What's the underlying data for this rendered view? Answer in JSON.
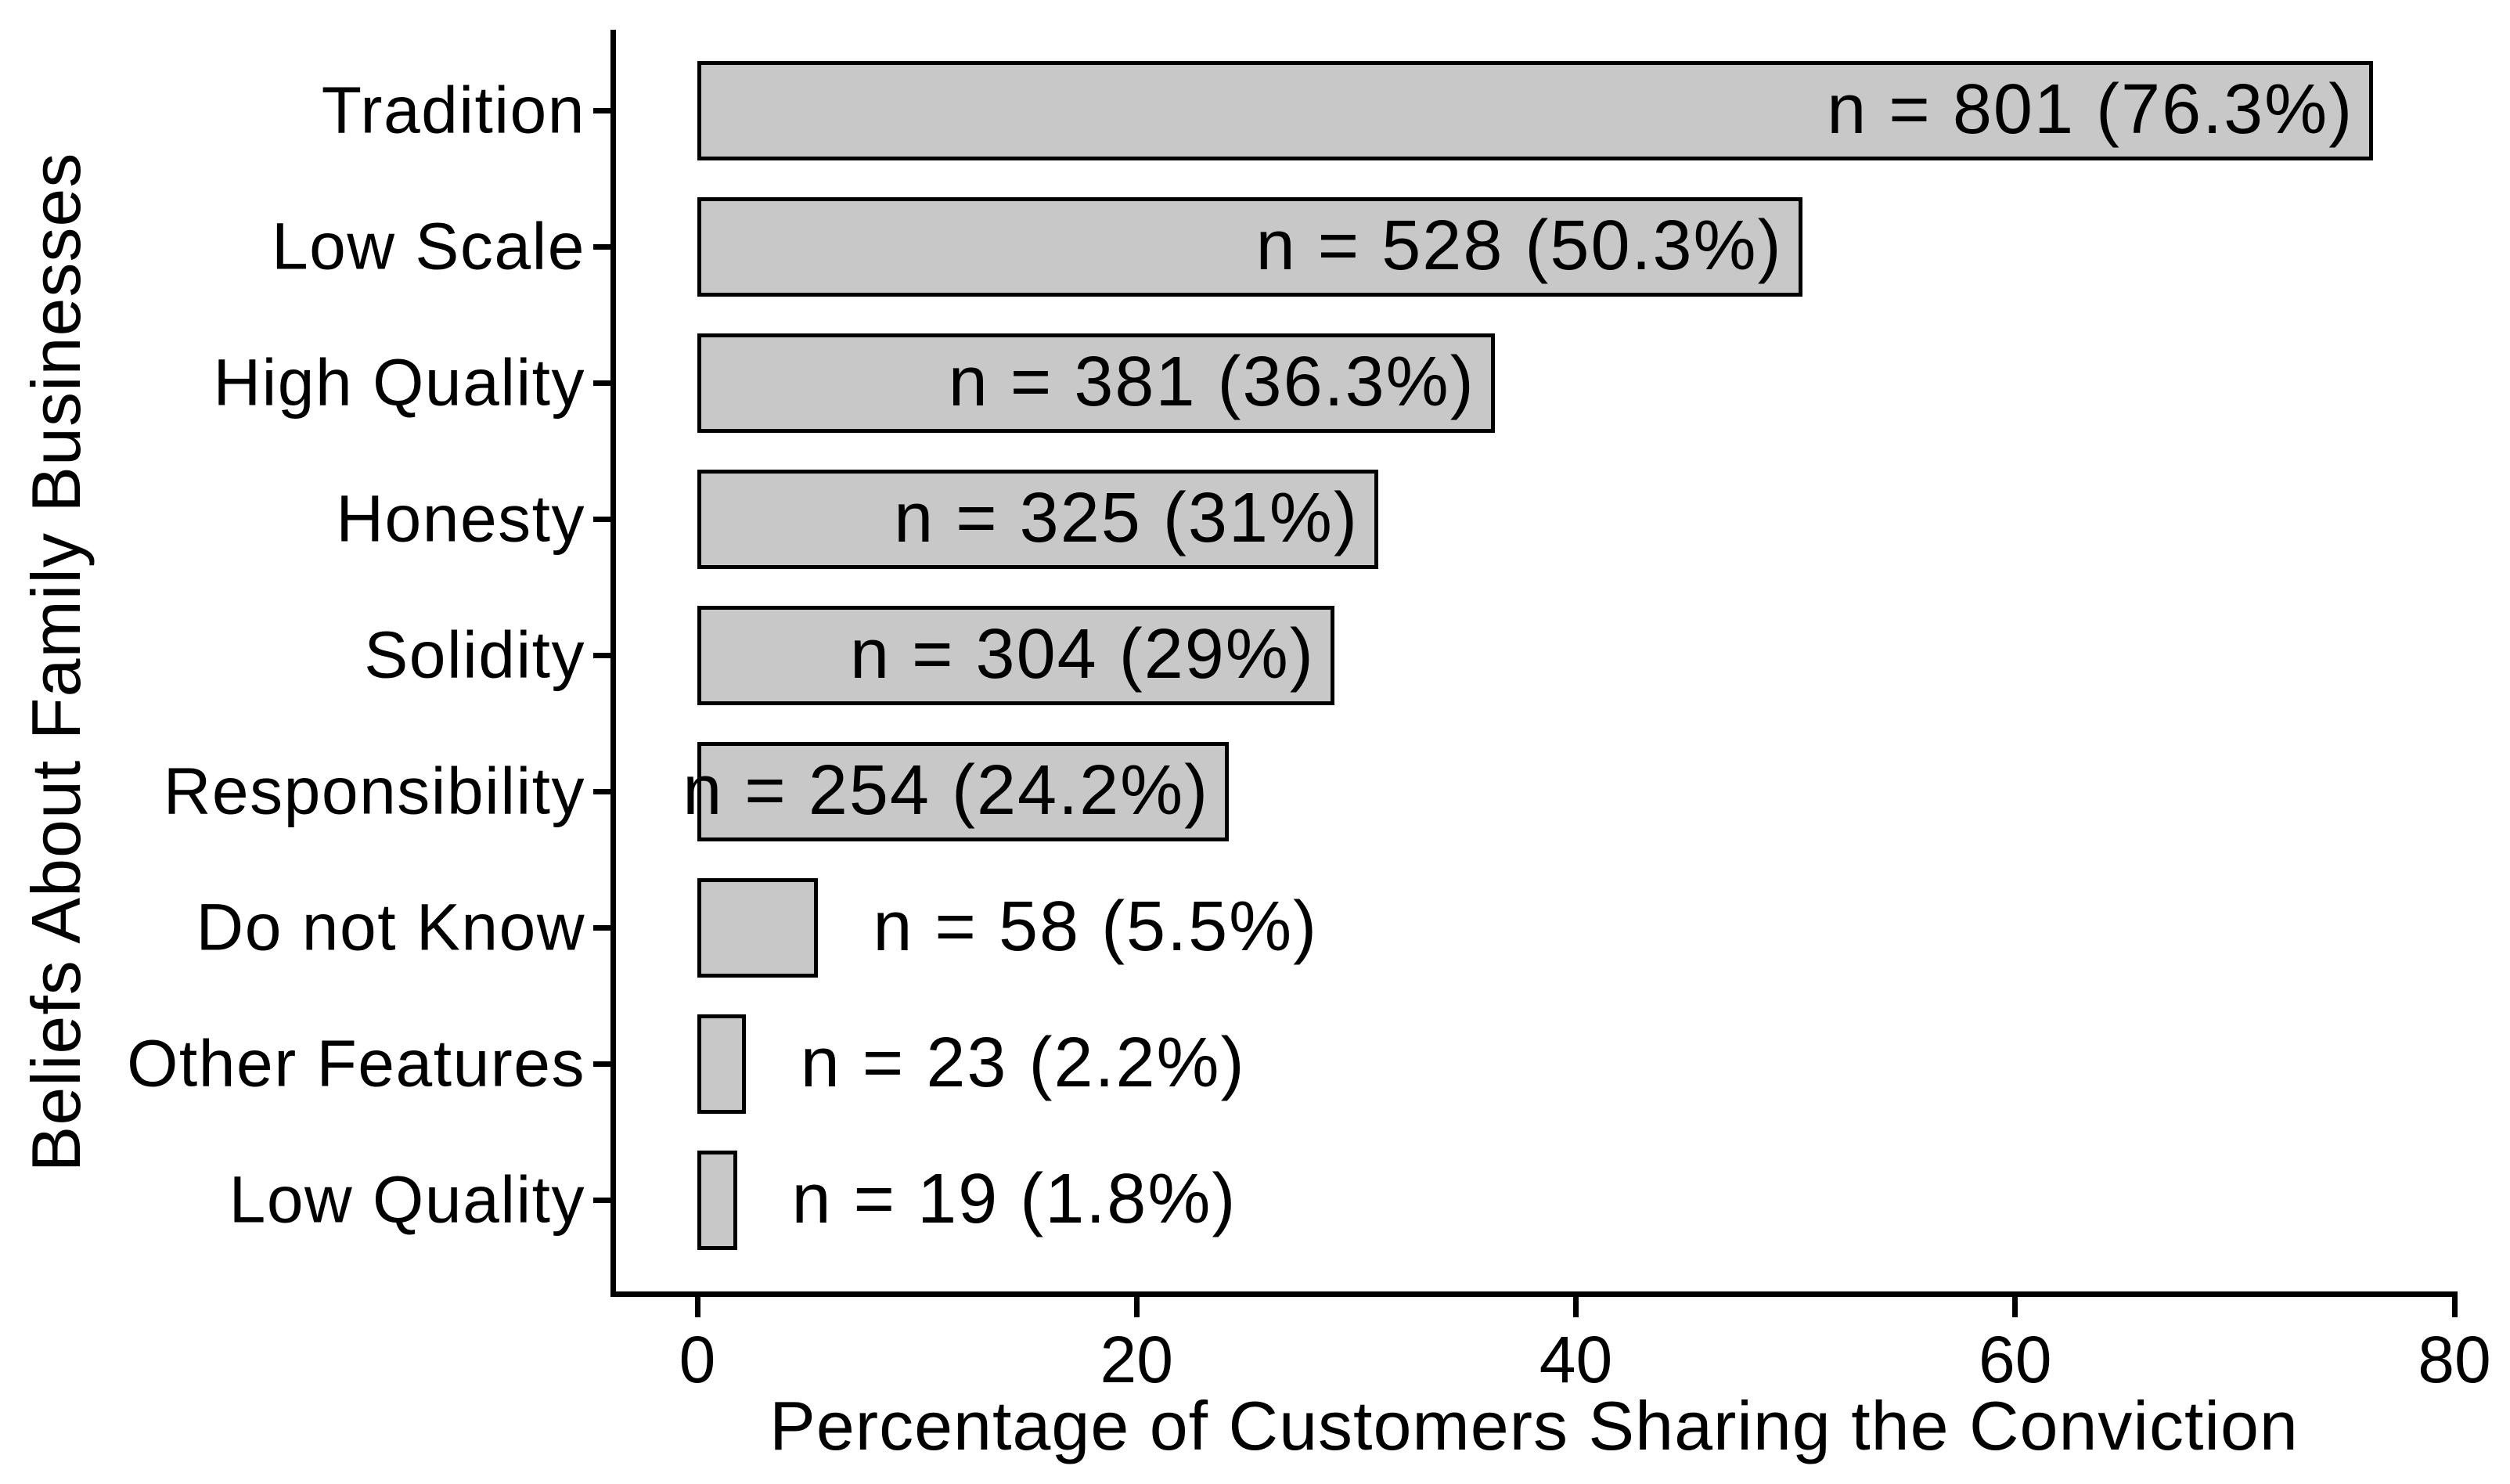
{
  "chart_data": {
    "type": "bar",
    "orientation": "horizontal",
    "title": "",
    "xlabel": "Percentage of Customers Sharing the Conviction",
    "ylabel": "Beliefs About Family Businesses",
    "categories": [
      "Tradition",
      "Low Scale",
      "High Quality",
      "Honesty",
      "Solidity",
      "Responsibility",
      "Do not Know",
      "Other Features",
      "Low Quality"
    ],
    "values": [
      76.3,
      50.3,
      36.3,
      31,
      29,
      24.2,
      5.5,
      2.2,
      1.8
    ],
    "counts": [
      801,
      528,
      381,
      325,
      304,
      254,
      58,
      23,
      19
    ],
    "bar_labels": [
      "n = 801 (76.3%)",
      "n = 528 (50.3%)",
      "n = 381 (36.3%)",
      "n = 325 (31%)",
      "n = 304 (29%)",
      "n = 254 (24.2%)",
      "n = 58 (5.5%)",
      "n = 23 (2.2%)",
      "n = 19 (1.8%)"
    ],
    "xlim": [
      0,
      80
    ],
    "x_ticks": [
      0,
      20,
      40,
      60,
      80
    ],
    "x_tick_labels": [
      "0",
      "20",
      "40",
      "60",
      "80"
    ],
    "grid": false,
    "legend": "none",
    "colors": {
      "bar_fill": "#c8c8c8",
      "bar_border": "#000000",
      "axis": "#000000",
      "text": "#000000",
      "background": "#ffffff"
    }
  }
}
